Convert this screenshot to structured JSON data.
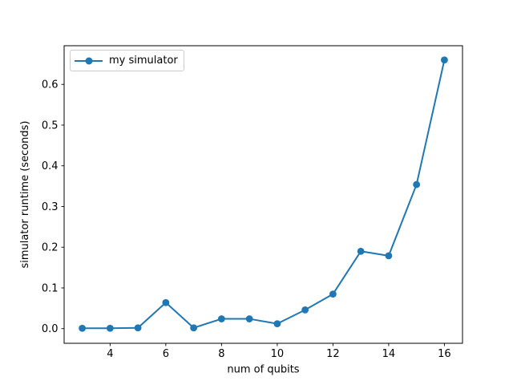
{
  "colors": {
    "series_blue": "#1f77b4",
    "spine": "#000000",
    "tick_text": "#000000",
    "legend_border": "#cccccc",
    "background": "#ffffff"
  },
  "chart_data": {
    "type": "line",
    "title": "",
    "xlabel": "num of qubits",
    "ylabel": "simulator runtime (seconds)",
    "grid": false,
    "xlim": [
      2.35,
      16.65
    ],
    "ylim": [
      -0.036,
      0.695
    ],
    "xticks": {
      "values": [
        4,
        6,
        8,
        10,
        12,
        14,
        16
      ],
      "labels": [
        "4",
        "6",
        "8",
        "10",
        "12",
        "14",
        "16"
      ]
    },
    "yticks": {
      "values": [
        0.0,
        0.1,
        0.2,
        0.3,
        0.4,
        0.5,
        0.6
      ],
      "labels": [
        "0.0",
        "0.1",
        "0.2",
        "0.3",
        "0.4",
        "0.5",
        "0.6"
      ]
    },
    "legend": {
      "position": "upper-left",
      "marker": "circle"
    },
    "series": [
      {
        "name": "my simulator",
        "color": "#1f77b4",
        "marker": "circle",
        "x": [
          3,
          4,
          5,
          6,
          7,
          8,
          9,
          10,
          11,
          12,
          13,
          14,
          15,
          16
        ],
        "y": [
          0.001,
          0.001,
          0.002,
          0.064,
          0.002,
          0.024,
          0.024,
          0.012,
          0.046,
          0.085,
          0.19,
          0.179,
          0.354,
          0.66
        ]
      }
    ]
  }
}
